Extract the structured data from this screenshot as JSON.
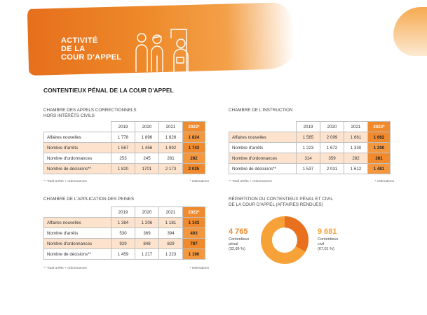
{
  "hero": {
    "title_lines": [
      "ACTIVITÉ",
      "DE LA",
      "COUR D'APPEL"
    ],
    "colors": {
      "brush": "#ee8a2a",
      "accent": "#f08a2c",
      "highlight_row": "#fde3cd"
    }
  },
  "section_title": "CONTENTIEUX PÉNAL DE LA COUR D'APPEL",
  "tables": {
    "appels": {
      "title_lines": [
        "CHAMBRE DES APPELS CORRECTIONNELS",
        "HORS INTÉRÊTS CIVILS"
      ],
      "headers": [
        "2019",
        "2020",
        "2021",
        "2022*"
      ],
      "rows": [
        {
          "label": "Affaires nouvelles",
          "values": [
            "1 778",
            "1 896",
            "1 828",
            "1 824"
          ]
        },
        {
          "label": "Nombre d'arrêts",
          "values": [
            "1 567",
            "1 456",
            "1 892",
            "1 743"
          ]
        },
        {
          "label": "Nombre d'ordonnances",
          "values": [
            "253",
            "245",
            "281",
            "282"
          ]
        },
        {
          "label": "Nombre de décisions**",
          "values": [
            "1 820",
            "1701",
            "2 173",
            "2 025"
          ]
        }
      ],
      "foot_left": "** Total arrêts + ordonnances",
      "foot_right": "* estimations"
    },
    "instruction": {
      "title_lines": [
        "CHAMBRE DE L'INSTRUCTION"
      ],
      "headers": [
        "2019",
        "2020",
        "2021",
        "2022*"
      ],
      "rows": [
        {
          "label": "Affaires nouvelles",
          "values": [
            "1 565",
            "2 099",
            "1 661",
            "1 662"
          ]
        },
        {
          "label": "Nombre d'arrêts",
          "values": [
            "1 223",
            "1 672",
            "1 330",
            "1 200"
          ]
        },
        {
          "label": "Nombre d'ordonnances",
          "values": [
            "314",
            "359",
            "282",
            "281"
          ]
        },
        {
          "label": "Nombre de décisions**",
          "values": [
            "1 537",
            "2 031",
            "1 612",
            "1 481"
          ]
        }
      ],
      "foot_left": "** Total arrêts + ordonnances",
      "foot_right": "* estimations"
    },
    "peines": {
      "title_lines": [
        "CHAMBRE DE L'APPLICATION DES PEINES"
      ],
      "headers": [
        "2019",
        "2020",
        "2021",
        "2022*"
      ],
      "rows": [
        {
          "label": "Affaires nouvelles",
          "values": [
            "1 384",
            "1 206",
            "1 181",
            "1 143"
          ]
        },
        {
          "label": "Nombre d'arrêts",
          "values": [
            "530",
            "369",
            "394",
            "403"
          ]
        },
        {
          "label": "Nombre d'ordonnances",
          "values": [
            "929",
            "848",
            "829",
            "787"
          ]
        },
        {
          "label": "Nombre de décisions**",
          "values": [
            "1 459",
            "1 217",
            "1 223",
            "1 190"
          ]
        }
      ],
      "foot_left": "** Total arrêts + ordonnances",
      "foot_right": "* estimations"
    }
  },
  "donut": {
    "title_lines": [
      "RÉPARTITION DU CONTENTIEUX PÉNAL ET CIVIL",
      "DE LA COUR D'APPEL (AFFAIRES RENDUES)"
    ],
    "left": {
      "value": "4 765",
      "label_lines": [
        "Contentieux",
        "pénal",
        "(32,99 %)"
      ],
      "percent": 32.99,
      "color": "#e8701f"
    },
    "right": {
      "value": "9 681",
      "label_lines": [
        "Contentieux",
        "civil",
        "(67,01 %)"
      ],
      "percent": 67.01,
      "color": "#f6a238"
    }
  }
}
